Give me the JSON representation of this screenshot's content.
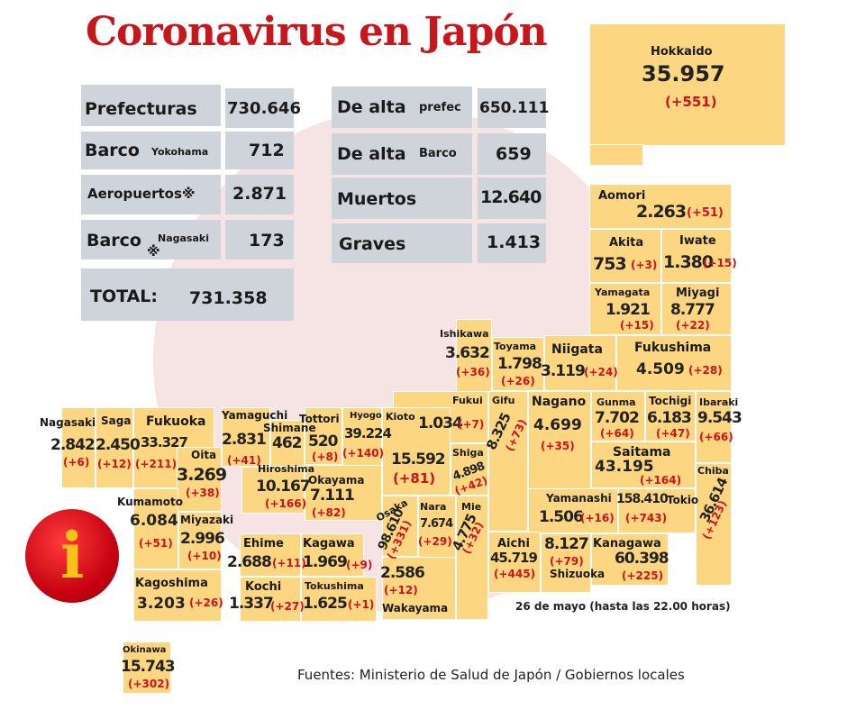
{
  "title": "Coronavirus en Japón",
  "summary": {
    "prefecturas": {
      "label": "Prefecturas",
      "value": "730.646"
    },
    "barco_yokohama": {
      "label": "Barco",
      "sub": "Yokohama",
      "value": "712"
    },
    "aeropuertos": {
      "label": "Aeropuertos※",
      "value": "2.871"
    },
    "barco_nagasaki": {
      "label": "Barco",
      "mark": "※",
      "sub": "Nagasaki",
      "value": "173"
    },
    "total": {
      "label": "TOTAL:",
      "value": "731.358"
    },
    "de_alta_prefec": {
      "label": "De alta",
      "sub": "prefec",
      "value": "650.111"
    },
    "de_alta_barco": {
      "label": "De alta",
      "sub": "Barco",
      "value": "659"
    },
    "muertos": {
      "label": "Muertos",
      "value": "12.640"
    },
    "graves": {
      "label": "Graves",
      "value": "1.413"
    }
  },
  "prefectures": {
    "hokkaido": {
      "name": "Hokkaido",
      "value": "35.957",
      "change": "(+551)"
    },
    "aomori": {
      "name": "Aomori",
      "value": "2.263",
      "change": "(+51)"
    },
    "akita": {
      "name": "Akita",
      "value": "753",
      "change": "(+3)"
    },
    "iwate": {
      "name": "Iwate",
      "value": "1.380",
      "change": "(+15)"
    },
    "yamagata": {
      "name": "Yamagata",
      "value": "1.921",
      "change": "(+15)"
    },
    "miyagi": {
      "name": "Miyagi",
      "value": "8.777",
      "change": "(+22)"
    },
    "ishikawa": {
      "name": "Ishikawa",
      "value": "3.632",
      "change": "(+36)"
    },
    "toyama": {
      "name": "Toyama",
      "value": "1.798",
      "change": "(+26)"
    },
    "niigata": {
      "name": "Niigata",
      "value": "3.119",
      "change": "(+24)"
    },
    "fukushima": {
      "name": "Fukushima",
      "value": "4.509",
      "change": "(+28)"
    },
    "fukui": {
      "name": "Fukui",
      "value": "1.034",
      "change": "(+7)"
    },
    "gifu": {
      "name": "Gifu",
      "value": "8.325",
      "change": "(+73)"
    },
    "nagano": {
      "name": "Nagano",
      "value": "4.699",
      "change": "(+35)"
    },
    "gunma": {
      "name": "Gunma",
      "value": "7.702",
      "change": "(+64)"
    },
    "tochigi": {
      "name": "Tochigi",
      "value": "6.183",
      "change": "(+47)"
    },
    "ibaraki": {
      "name": "Ibaraki",
      "value": "9.543",
      "change": "(+66)"
    },
    "saitama": {
      "name": "Saitama",
      "value": "43.195",
      "change": "(+164)"
    },
    "chiba": {
      "name": "Chiba",
      "value": "36.614",
      "change": "(+123)"
    },
    "yamanashi": {
      "name": "Yamanashi",
      "value": "1.506",
      "change": "(+16)"
    },
    "tokio": {
      "name": "Tokio",
      "value": "158.410",
      "change": "(+743)"
    },
    "kanagawa": {
      "name": "Kanagawa",
      "value": "60.398",
      "change": "(+225)"
    },
    "shizuoka": {
      "name": "Shizuoka",
      "value": "8.127",
      "change": "(+79)"
    },
    "aichi": {
      "name": "Aichi",
      "value": "45.719",
      "change": "(+445)"
    },
    "mie": {
      "name": "Mie",
      "value": "4.775",
      "change": "(+32)"
    },
    "nara": {
      "name": "Nara",
      "value": "7.674",
      "change": "(+29)"
    },
    "shiga": {
      "name": "Shiga",
      "value": "4.898",
      "change": "(+42)"
    },
    "kioto": {
      "name": "Kioto",
      "value": "15.592",
      "change": "(+81)"
    },
    "osaka": {
      "name": "Osaka",
      "value": "98.610",
      "change": "(+331)"
    },
    "hyogo": {
      "name": "Hyogo",
      "value": "39.224",
      "change": "(+140)"
    },
    "wakayama": {
      "name": "Wakayama",
      "value": "2.586",
      "change": "(+12)"
    },
    "tottori": {
      "name": "Tottori",
      "value": "520",
      "change": "(+8)"
    },
    "shimane": {
      "name": "Shimane",
      "value": "462"
    },
    "okayama": {
      "name": "Okayama",
      "value": "7.111",
      "change": "(+82)"
    },
    "hiroshima": {
      "name": "Hiroshima",
      "value": "10.167",
      "change": "(+166)"
    },
    "yamaguchi": {
      "name": "Yamaguchi",
      "value": "2.831",
      "change": "(+41)"
    },
    "kagawa": {
      "name": "Kagawa",
      "value": "1.969",
      "change": "(+9)"
    },
    "ehime": {
      "name": "Ehime",
      "value": "2.688",
      "change": "(+11)"
    },
    "kochi": {
      "name": "Kochi",
      "value": "1.337",
      "change": "(+27)"
    },
    "tokushima": {
      "name": "Tokushima",
      "value": "1.625",
      "change": "(+1)"
    },
    "fukuoka": {
      "name": "Fukuoka",
      "value": "33.327",
      "change": "(+211)"
    },
    "saga": {
      "name": "Saga",
      "value": "2.450",
      "change": "(+12)"
    },
    "nagasaki": {
      "name": "Nagasaki",
      "value": "2.842",
      "change": "(+6)"
    },
    "oita": {
      "name": "Oita",
      "value": "3.269",
      "change": "(+38)"
    },
    "kumamoto": {
      "name": "Kumamoto",
      "value": "6.084",
      "change": "(+51)"
    },
    "miyazaki": {
      "name": "Miyazaki",
      "value": "2.996",
      "change": "(+10)"
    },
    "kagoshima": {
      "name": "Kagoshima",
      "value": "3.203",
      "change": "(+26)"
    },
    "okinawa": {
      "name": "Okinawa",
      "value": "15.743",
      "change": "(+302)"
    }
  },
  "date_note": "26 de mayo  (hasta las  22.00 horas)",
  "sources": "Fuentes: Ministerio de Salud de Japón / Gobiernos locales",
  "icon": "info-icon",
  "colors": {
    "title": "#c8161d",
    "prefecture": "#fcd681",
    "change": "#d0101a",
    "summary_box": "#cfd3da"
  }
}
